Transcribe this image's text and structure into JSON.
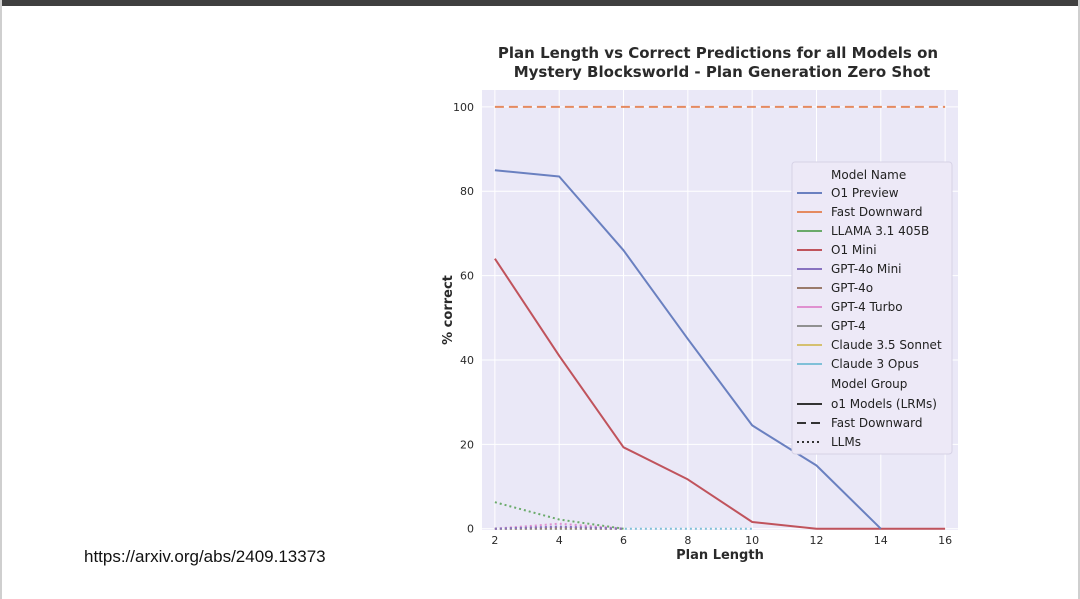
{
  "source_link": "https://arxiv.org/abs/2409.13373",
  "chart_data": {
    "type": "line",
    "title": [
      "Plan Length vs Correct Predictions for all Models on",
      "Mystery Blocksworld - Plan Generation Zero Shot"
    ],
    "xlabel": "Plan Length",
    "ylabel": "% correct",
    "x_ticks": [
      2,
      4,
      6,
      8,
      10,
      12,
      14,
      16
    ],
    "y_ticks": [
      0,
      20,
      40,
      60,
      80,
      100
    ],
    "xlim": [
      1.6,
      16.4
    ],
    "ylim": [
      -0.3,
      104
    ],
    "background": "#eae8f7",
    "series": [
      {
        "name": "O1 Preview",
        "color": "#6a80c0",
        "style": "solid",
        "x": [
          2,
          4,
          6,
          8,
          10,
          12,
          14
        ],
        "y": [
          85,
          83.5,
          66,
          45,
          24.5,
          15,
          0
        ]
      },
      {
        "name": "Fast Downward",
        "color": "#e58a60",
        "style": "dashed",
        "x": [
          2,
          4,
          6,
          8,
          10,
          12,
          14,
          16
        ],
        "y": [
          100,
          100,
          100,
          100,
          100,
          100,
          100,
          100
        ]
      },
      {
        "name": "LLAMA 3.1 405B",
        "color": "#6aaa6a",
        "style": "dotted",
        "x": [
          2,
          4,
          6
        ],
        "y": [
          6.3,
          2.2,
          0
        ]
      },
      {
        "name": "O1 Mini",
        "color": "#c0535c",
        "style": "solid",
        "x": [
          2,
          4,
          6,
          8,
          10,
          12,
          14,
          16
        ],
        "y": [
          64,
          41,
          19.3,
          11.7,
          1.6,
          0,
          0,
          0
        ]
      },
      {
        "name": "GPT-4o Mini",
        "color": "#8872c0",
        "style": "dotted",
        "x": [
          2,
          4,
          6
        ],
        "y": [
          0,
          0.5,
          0
        ]
      },
      {
        "name": "GPT-4o",
        "color": "#9a7a6a",
        "style": "dotted",
        "x": [
          2,
          4,
          6
        ],
        "y": [
          0,
          0.3,
          0
        ]
      },
      {
        "name": "GPT-4 Turbo",
        "color": "#e090d0",
        "style": "dotted",
        "x": [
          2,
          4,
          6
        ],
        "y": [
          0,
          1.2,
          0
        ]
      },
      {
        "name": "GPT-4",
        "color": "#909090",
        "style": "dotted",
        "x": [
          2,
          4,
          6
        ],
        "y": [
          0,
          0,
          0
        ]
      },
      {
        "name": "Claude 3.5 Sonnet",
        "color": "#d5c070",
        "style": "dotted",
        "x": [
          2,
          4,
          6
        ],
        "y": [
          0,
          0,
          0
        ]
      },
      {
        "name": "Claude 3 Opus",
        "color": "#80c0d8",
        "style": "dotted",
        "x": [
          2,
          4,
          6,
          8,
          10
        ],
        "y": [
          0,
          0,
          0,
          0,
          0
        ]
      }
    ],
    "legend": {
      "position": "right",
      "model_title": "Model Name",
      "group_title": "Model Group",
      "groups": [
        {
          "name": "o1 Models (LRMs)",
          "style": "solid"
        },
        {
          "name": "Fast Downward",
          "style": "dashed"
        },
        {
          "name": "LLMs",
          "style": "dotted"
        }
      ]
    }
  }
}
